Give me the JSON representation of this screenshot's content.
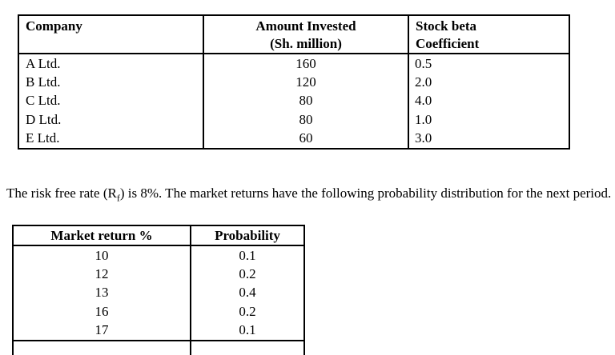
{
  "companies_table": {
    "headers": {
      "company": "Company",
      "amount_line1": "Amount Invested",
      "amount_line2": "(Sh. million)",
      "beta_line1": "Stock beta",
      "beta_line2": "Coefficient"
    },
    "rows": [
      {
        "company": "A Ltd.",
        "amount": "160",
        "beta": "0.5"
      },
      {
        "company": "B Ltd.",
        "amount": "120",
        "beta": "2.0"
      },
      {
        "company": "C Ltd.",
        "amount": "80",
        "beta": "4.0"
      },
      {
        "company": "D Ltd.",
        "amount": "80",
        "beta": "1.0"
      },
      {
        "company": "E Ltd.",
        "amount": "60",
        "beta": "3.0"
      }
    ]
  },
  "paragraph": {
    "pre": "The risk free rate (R",
    "sub": "f",
    "post": ") is 8%. The market returns have the following probability distribution for the next period."
  },
  "market_table": {
    "headers": {
      "market_return": "Market return %",
      "probability": "Probability"
    },
    "rows": [
      {
        "market_return": "10",
        "probability": "0.1"
      },
      {
        "market_return": "12",
        "probability": "0.2"
      },
      {
        "market_return": "13",
        "probability": "0.4"
      },
      {
        "market_return": "16",
        "probability": "0.2"
      },
      {
        "market_return": "17",
        "probability": "0.1"
      }
    ]
  }
}
